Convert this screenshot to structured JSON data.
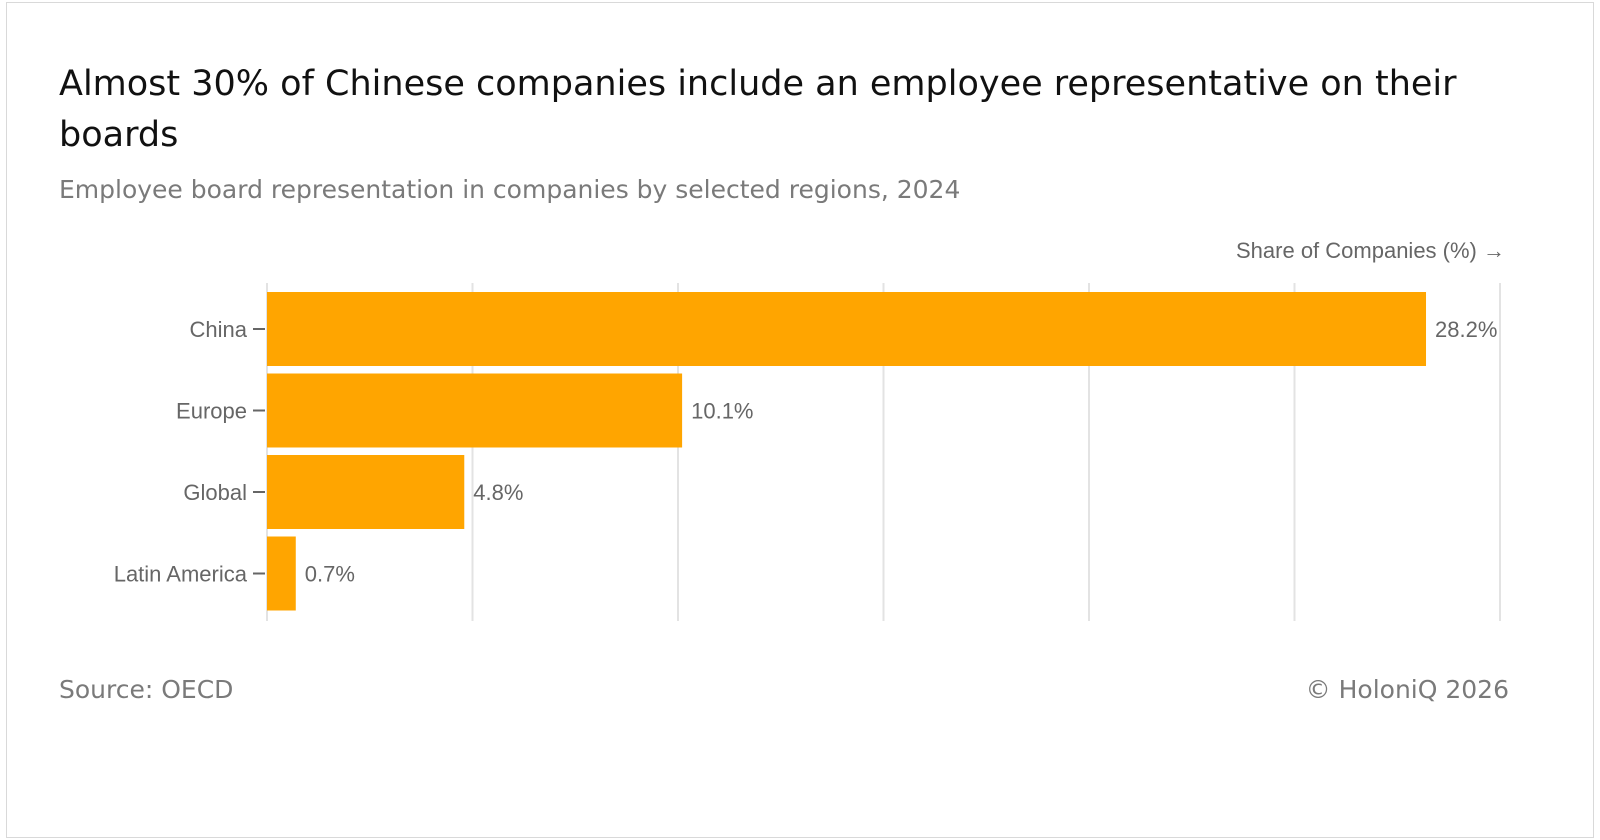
{
  "title": "Almost 30% of Chinese companies include an employee representative on their boards",
  "subtitle": "Employee board representation in companies by selected regions, 2024",
  "source": "Source: OECD",
  "copyright": "© HoloniQ 2026",
  "colors": {
    "bar": "#FFA500",
    "grid": "#e3e3e3",
    "text": "#666666"
  },
  "chart_data": {
    "type": "bar",
    "orientation": "horizontal",
    "categories": [
      "China",
      "Europe",
      "Global",
      "Latin America"
    ],
    "values": [
      28.2,
      10.1,
      4.8,
      0.7
    ],
    "value_labels": [
      "28.2%",
      "10.1%",
      "4.8%",
      "0.7%"
    ],
    "xlabel": "Share of Companies (%) →",
    "ylabel": "",
    "xlim": [
      0,
      30
    ],
    "grid": true,
    "legend": "none"
  }
}
